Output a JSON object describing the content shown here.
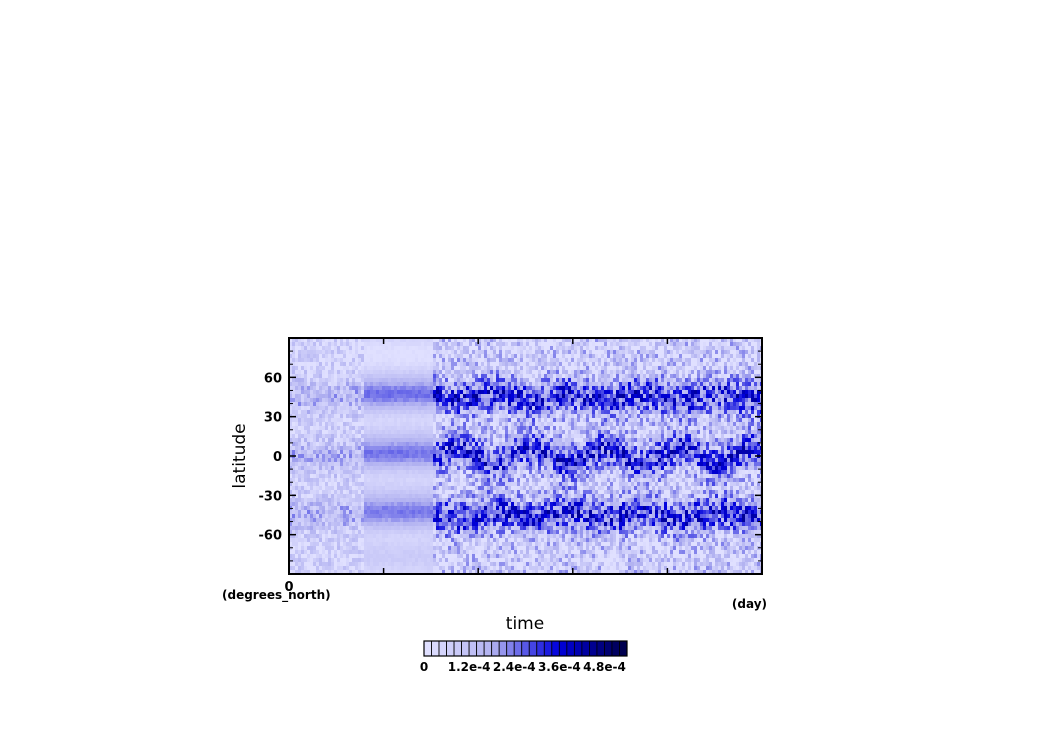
{
  "chart_data": {
    "type": "heatmap",
    "xlabel": "time",
    "ylabel": "latitude",
    "x_units": "(day)",
    "y_units": "(degrees_north)",
    "x_tick_labels": [
      "0"
    ],
    "y_ticks": [
      60,
      30,
      0,
      -30,
      -60
    ],
    "y_tick_labels": [
      "60",
      "30",
      "0",
      "-30",
      "-60"
    ],
    "ylim": [
      -90,
      90
    ],
    "grid": false,
    "colorbar": {
      "min": 0,
      "max": 0.00054,
      "levels": 27,
      "tick_values": [
        0,
        0.00012,
        0.00024,
        0.00036,
        0.00048
      ],
      "tick_labels": [
        "0",
        "1.2e-4",
        "2.4e-4",
        "3.6e-4",
        "4.8e-4"
      ],
      "colors": [
        "#e0e0ff",
        "#b0b0f0",
        "#0000dd",
        "#000050"
      ]
    },
    "structure": {
      "bands_lat": [
        45,
        0,
        -45
      ],
      "phases": [
        "spin-up noisy",
        "smooth",
        "noisy oscillating"
      ]
    }
  }
}
